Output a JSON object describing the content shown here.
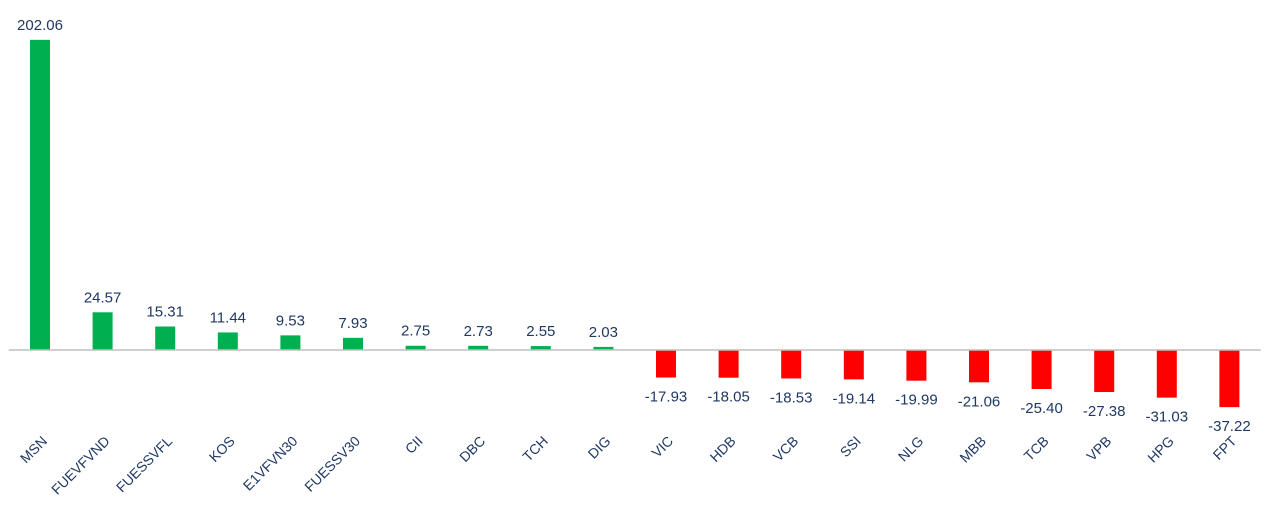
{
  "chart_data": {
    "type": "bar",
    "categories": [
      "MSN",
      "FUEVFVND",
      "FUESSVFL",
      "KOS",
      "E1VFVN30",
      "FUESSV30",
      "CII",
      "DBC",
      "TCH",
      "DIG",
      "VIC",
      "HDB",
      "VCB",
      "SSI",
      "NLG",
      "MBB",
      "TCB",
      "VPB",
      "HPG",
      "FPT"
    ],
    "values": [
      202.06,
      24.57,
      15.31,
      11.44,
      9.53,
      7.93,
      2.75,
      2.73,
      2.55,
      2.03,
      -17.93,
      -18.05,
      -18.53,
      -19.14,
      -19.99,
      -21.06,
      -25.4,
      -27.38,
      -31.03,
      -37.22
    ],
    "value_labels": [
      "202.06",
      "24.57",
      "15.31",
      "11.44",
      "9.53",
      "7.93",
      "2.75",
      "2.73",
      "2.55",
      "2.03",
      "-17.93",
      "-18.05",
      "-18.53",
      "-19.14",
      "-19.99",
      "-21.06",
      "-25.40",
      "-27.38",
      "-31.03",
      "-37.22"
    ],
    "color": "#00b050",
    "negative_color": "#ff0000",
    "ylim": [
      -40,
      210
    ]
  }
}
